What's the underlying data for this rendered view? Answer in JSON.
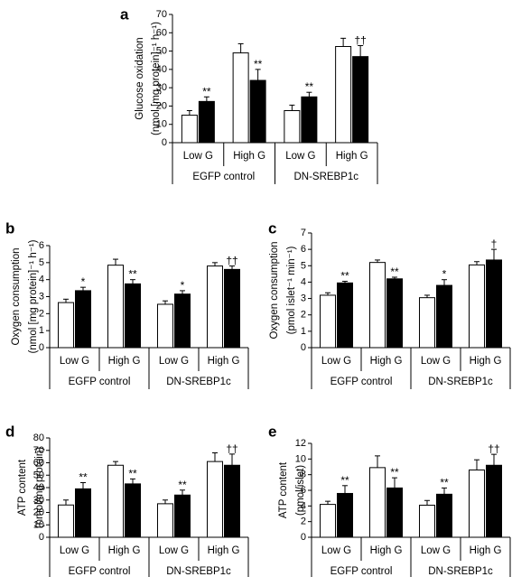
{
  "chart_data": [
    {
      "panel": "a",
      "type": "bar",
      "ylabel": [
        "Glucose oxidation",
        "(nmol [mg protein]⁻¹ h⁻¹)"
      ],
      "ylim": [
        0,
        70
      ],
      "yticks": [
        0,
        10,
        20,
        30,
        40,
        50,
        60,
        70
      ],
      "categories": [
        "Low G",
        "High G",
        "Low G",
        "High G"
      ],
      "groups": [
        "EGFP control",
        "DN-SREBP1c"
      ],
      "series": [
        {
          "fill": "#ffffff",
          "values": [
            15,
            49,
            17.5,
            52.5
          ],
          "errors": [
            2.5,
            5,
            3,
            4.5
          ],
          "marks": [
            "",
            "",
            "",
            ""
          ]
        },
        {
          "fill": "#000000",
          "values": [
            22.5,
            34,
            25,
            47
          ],
          "errors": [
            2.5,
            6,
            2.5,
            6
          ],
          "marks": [
            "**",
            "**",
            "**",
            "††"
          ]
        }
      ]
    },
    {
      "panel": "b",
      "type": "bar",
      "ylabel": [
        "Oxygen consumption",
        "(nmol [mg protein]⁻¹ h⁻¹)"
      ],
      "ylim": [
        0,
        6
      ],
      "yticks": [
        0,
        1,
        2,
        3,
        4,
        5,
        6
      ],
      "categories": [
        "Low G",
        "High G",
        "Low G",
        "High G"
      ],
      "groups": [
        "EGFP control",
        "DN-SREBP1c"
      ],
      "series": [
        {
          "fill": "#ffffff",
          "values": [
            2.65,
            4.85,
            2.55,
            4.8
          ],
          "errors": [
            0.2,
            0.35,
            0.2,
            0.2
          ],
          "marks": [
            "",
            "",
            "",
            ""
          ]
        },
        {
          "fill": "#000000",
          "values": [
            3.35,
            3.75,
            3.15,
            4.6
          ],
          "errors": [
            0.2,
            0.25,
            0.2,
            0.2
          ],
          "marks": [
            "*",
            "**",
            "*",
            "††"
          ]
        }
      ]
    },
    {
      "panel": "c",
      "type": "bar",
      "ylabel": [
        "Oxygen consumption",
        "(pmol islet⁻¹ min⁻¹)"
      ],
      "ylim": [
        0,
        7
      ],
      "yticks": [
        0,
        1,
        2,
        3,
        4,
        5,
        6,
        7
      ],
      "categories": [
        "Low G",
        "High G",
        "Low G",
        "High G"
      ],
      "groups": [
        "EGFP control",
        "DN-SREBP1c"
      ],
      "series": [
        {
          "fill": "#ffffff",
          "values": [
            3.2,
            5.2,
            3.05,
            5.05
          ],
          "errors": [
            0.15,
            0.15,
            0.15,
            0.2
          ],
          "marks": [
            "",
            "",
            "",
            ""
          ]
        },
        {
          "fill": "#000000",
          "values": [
            3.95,
            4.2,
            3.8,
            5.35
          ],
          "errors": [
            0.1,
            0.1,
            0.35,
            0.65
          ],
          "marks": [
            "**",
            "**",
            "*",
            "†"
          ]
        }
      ]
    },
    {
      "panel": "d",
      "type": "bar",
      "ylabel": [
        "ATP content",
        "(nmol/mg protein)"
      ],
      "ylim": [
        0,
        80
      ],
      "yticks": [
        0,
        10,
        20,
        30,
        40,
        50,
        60,
        70,
        80
      ],
      "categories": [
        "Low G",
        "High G",
        "Low G",
        "High G"
      ],
      "groups": [
        "EGFP control",
        "DN-SREBP1c"
      ],
      "series": [
        {
          "fill": "#ffffff",
          "values": [
            26,
            58,
            27,
            61
          ],
          "errors": [
            4,
            3,
            3,
            7
          ],
          "marks": [
            "",
            "",
            "",
            ""
          ]
        },
        {
          "fill": "#000000",
          "values": [
            39,
            43,
            34,
            58
          ],
          "errors": [
            5,
            4,
            4,
            9
          ],
          "marks": [
            "**",
            "**",
            "**",
            "††"
          ]
        }
      ]
    },
    {
      "panel": "e",
      "type": "bar",
      "ylabel": [
        "ATP content",
        "(pmol/islet)"
      ],
      "ylim": [
        0,
        12
      ],
      "yticks": [
        0,
        2,
        4,
        6,
        8,
        10,
        12
      ],
      "categories": [
        "Low G",
        "High G",
        "Low G",
        "High G"
      ],
      "groups": [
        "EGFP control",
        "DN-SREBP1c"
      ],
      "series": [
        {
          "fill": "#ffffff",
          "values": [
            4.2,
            8.9,
            4.1,
            8.6
          ],
          "errors": [
            0.4,
            1.5,
            0.6,
            1.3
          ],
          "marks": [
            "",
            "",
            "",
            ""
          ]
        },
        {
          "fill": "#000000",
          "values": [
            5.6,
            6.3,
            5.5,
            9.2
          ],
          "errors": [
            1.0,
            1.3,
            0.8,
            1.4
          ],
          "marks": [
            "**",
            "**",
            "**",
            "††"
          ]
        }
      ]
    }
  ]
}
